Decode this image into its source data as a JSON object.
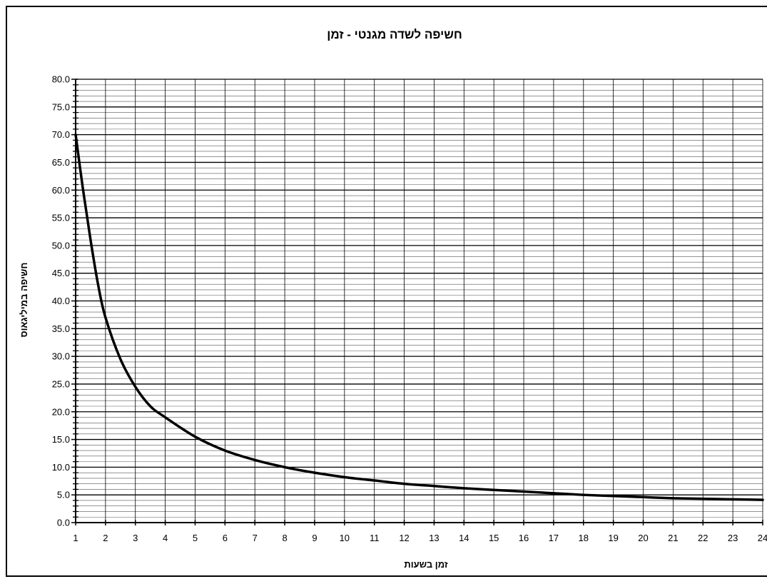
{
  "chart_data": {
    "type": "line",
    "title": "חשיפה  לשדה מגנטי  - זמן",
    "xlabel": "זמן בשעות",
    "ylabel": "חשיפה במיליגאוס",
    "xlim": [
      1,
      24
    ],
    "ylim": [
      0,
      80
    ],
    "x_ticks": [
      1,
      2,
      3,
      4,
      5,
      6,
      7,
      8,
      9,
      10,
      11,
      12,
      13,
      14,
      15,
      16,
      17,
      18,
      19,
      20,
      21,
      22,
      23,
      24
    ],
    "y_ticks": [
      "0.0",
      "5.0",
      "10.0",
      "15.0",
      "20.0",
      "25.0",
      "30.0",
      "35.0",
      "40.0",
      "45.0",
      "50.0",
      "55.0",
      "60.0",
      "65.0",
      "70.0",
      "75.0",
      "80.0"
    ],
    "grid": true,
    "legend": "none",
    "line_color": "#000000",
    "series": [
      {
        "x": [
          1,
          1.25,
          1.5,
          1.75,
          2,
          2.5,
          3,
          3.5,
          4,
          5,
          6,
          7,
          8,
          9,
          10,
          11,
          12,
          13,
          14,
          15,
          16,
          17,
          18,
          19,
          20,
          21,
          22,
          23,
          24
        ],
        "y": [
          70.0,
          60.0,
          51.0,
          43.0,
          37.0,
          29.5,
          24.5,
          21.0,
          19.0,
          15.5,
          13.0,
          11.3,
          10.0,
          9.0,
          8.2,
          7.6,
          7.0,
          6.6,
          6.2,
          5.9,
          5.6,
          5.3,
          5.0,
          4.8,
          4.6,
          4.4,
          4.3,
          4.2,
          4.1
        ]
      }
    ]
  }
}
